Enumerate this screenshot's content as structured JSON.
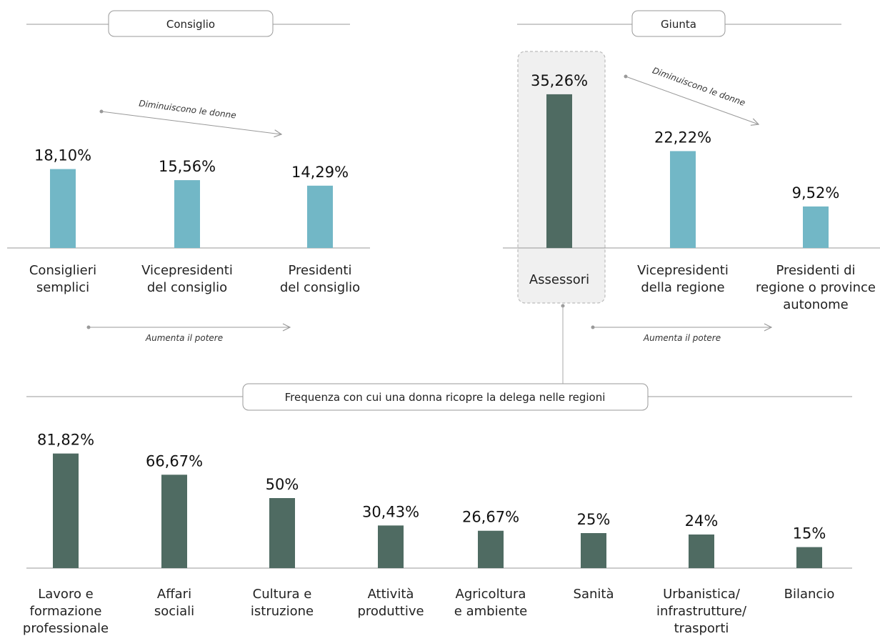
{
  "colors": {
    "light_bar": "#72b7c6",
    "dark_bar": "#4f6b62",
    "line": "#999999",
    "highlight_bg": "#f0f0f0"
  },
  "consiglio": {
    "title": "Consiglio",
    "note_top": "Diminuiscono le donne",
    "note_bottom": "Aumenta il potere"
  },
  "giunta": {
    "title": "Giunta",
    "note_top": "Diminuiscono le donne",
    "note_bottom": "Aumenta il potere"
  },
  "deleghe": {
    "title": "Frequenza con cui una donna ricopre la delega nelle regioni"
  },
  "chart_data": [
    {
      "type": "bar",
      "title": "Consiglio",
      "unit": "%",
      "categories": [
        [
          "Consiglieri",
          "semplici"
        ],
        [
          "Vicepresidenti",
          "del consiglio"
        ],
        [
          "Presidenti",
          "del consiglio"
        ]
      ],
      "values": [
        18.1,
        15.56,
        14.29
      ],
      "labels": [
        "18,10%",
        "15,56%",
        "14,29%"
      ],
      "ylim": [
        0,
        40
      ]
    },
    {
      "type": "bar",
      "title": "Giunta",
      "unit": "%",
      "categories": [
        [
          "Assessori"
        ],
        [
          "Vicepresidenti",
          "della regione"
        ],
        [
          "Presidenti di",
          "regione o province",
          "autonome"
        ]
      ],
      "values": [
        35.26,
        22.22,
        9.52
      ],
      "labels": [
        "35,26%",
        "22,22%",
        "9,52%"
      ],
      "highlight": "Assessori",
      "ylim": [
        0,
        40
      ]
    },
    {
      "type": "bar",
      "title": "Frequenza con cui una donna ricopre la delega nelle regioni",
      "unit": "%",
      "categories": [
        [
          "Lavoro e",
          "formazione",
          "professionale"
        ],
        [
          "Affari",
          "sociali"
        ],
        [
          "Cultura e",
          "istruzione"
        ],
        [
          "Attività",
          "produttive"
        ],
        [
          "Agricoltura",
          "e ambiente"
        ],
        [
          "Sanità"
        ],
        [
          "Urbanistica/",
          "infrastrutture/",
          "trasporti"
        ],
        [
          "Bilancio"
        ]
      ],
      "values": [
        81.82,
        66.67,
        50,
        30.43,
        26.67,
        25,
        24,
        15
      ],
      "labels": [
        "81,82%",
        "66,67%",
        "50%",
        "30,43%",
        "26,67%",
        "25%",
        "24%",
        "15%"
      ],
      "ylim": [
        0,
        100
      ]
    }
  ]
}
